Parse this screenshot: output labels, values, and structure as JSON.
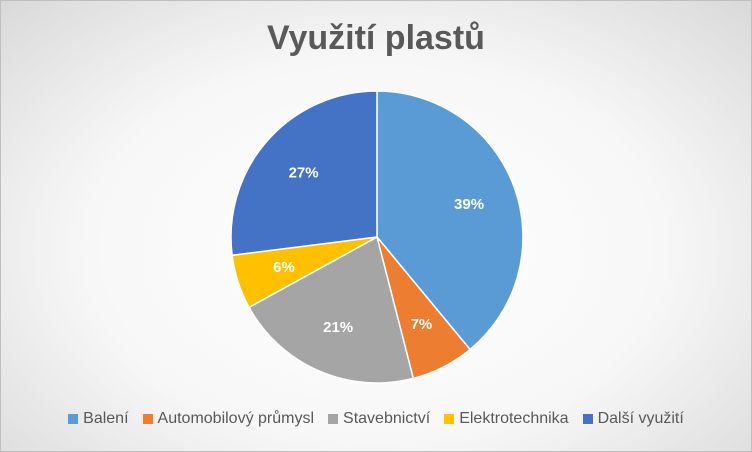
{
  "chart_data": {
    "type": "pie",
    "title": "Využití plastů",
    "slices": [
      {
        "label": "Balení",
        "value": 39,
        "display": "39%",
        "color": "#5B9BD5"
      },
      {
        "label": "Automobilový průmysl",
        "value": 7,
        "display": "7%",
        "color": "#ED7D31"
      },
      {
        "label": "Stavebnictví",
        "value": 21,
        "display": "21%",
        "color": "#A5A5A5"
      },
      {
        "label": "Elektrotechnika",
        "value": 6,
        "display": "6%",
        "color": "#FFC000"
      },
      {
        "label": "Další využití",
        "value": 27,
        "display": "27%",
        "color": "#4472C4"
      }
    ],
    "legend_position": "bottom"
  }
}
